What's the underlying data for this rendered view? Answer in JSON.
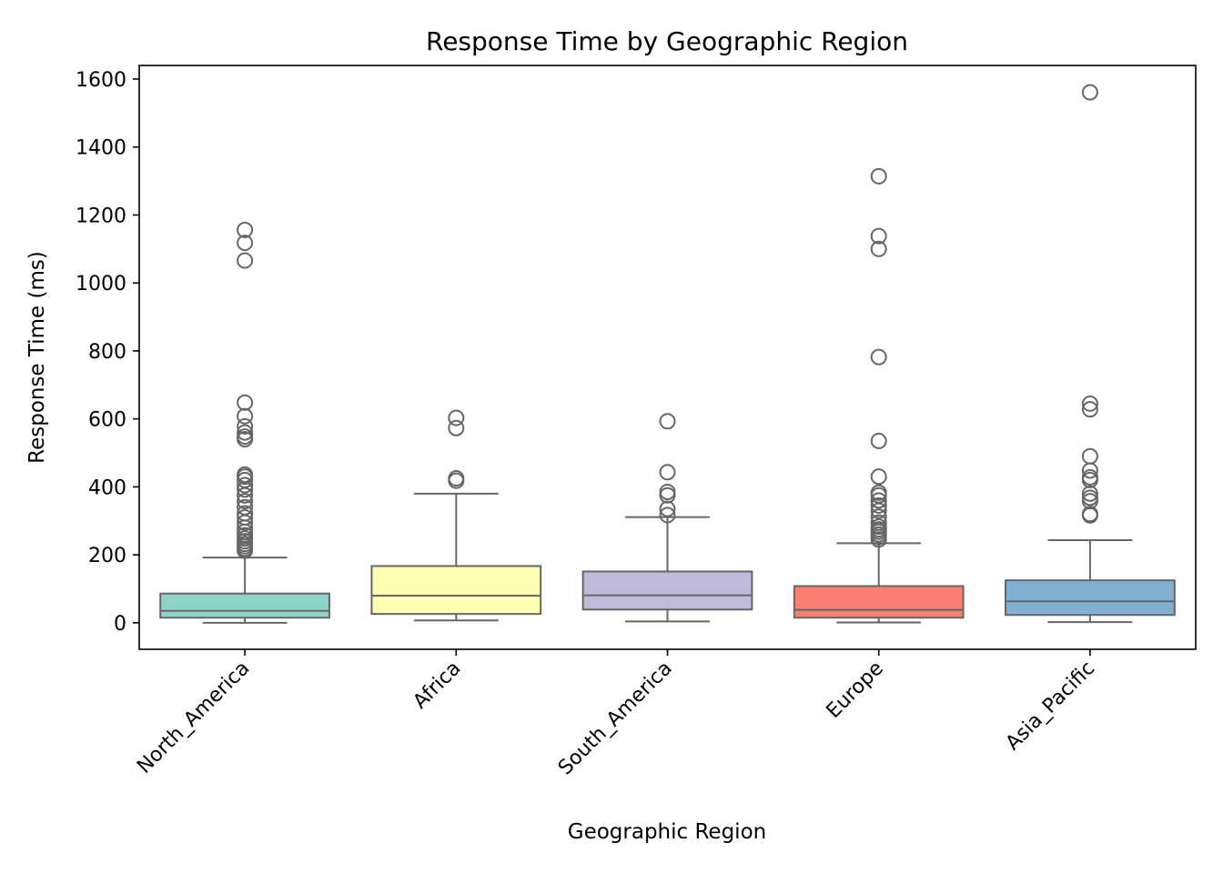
{
  "chart_data": {
    "type": "box",
    "title": "Response Time by Geographic Region",
    "xlabel": "Geographic Region",
    "ylabel": "Response Time (ms)",
    "ylim": [
      -78,
      1640
    ],
    "yticks": [
      0,
      200,
      400,
      600,
      800,
      1000,
      1200,
      1400,
      1600
    ],
    "grid": false,
    "categories": [
      "North_America",
      "Africa",
      "South_America",
      "Europe",
      "Asia_Pacific"
    ],
    "series": [
      {
        "category": "North_America",
        "color": "#8dd3c7",
        "whisker_low": 0,
        "q1": 15,
        "median": 35,
        "q3": 86,
        "whisker_high": 192,
        "outliers": [
          212,
          218,
          225,
          232,
          240,
          248,
          258,
          268,
          280,
          295,
          310,
          322,
          340,
          358,
          375,
          392,
          405,
          420,
          430,
          436,
          540,
          548,
          560,
          578,
          608,
          648,
          1066,
          1118,
          1156
        ]
      },
      {
        "category": "Africa",
        "color": "#ffffb3",
        "whisker_low": 7,
        "q1": 26,
        "median": 80,
        "q3": 167,
        "whisker_high": 380,
        "outliers": [
          418,
          425,
          573,
          603
        ]
      },
      {
        "category": "South_America",
        "color": "#bebada",
        "whisker_low": 4,
        "q1": 39,
        "median": 81,
        "q3": 151,
        "whisker_high": 311,
        "outliers": [
          317,
          335,
          375,
          385,
          443,
          593
        ]
      },
      {
        "category": "Europe",
        "color": "#fb8072",
        "whisker_low": 1,
        "q1": 15,
        "median": 38,
        "q3": 108,
        "whisker_high": 234,
        "outliers": [
          245,
          252,
          260,
          268,
          275,
          283,
          295,
          312,
          330,
          345,
          360,
          375,
          383,
          430,
          535,
          782,
          1100,
          1138,
          1314
        ]
      },
      {
        "category": "Asia_Pacific",
        "color": "#80b1d3",
        "whisker_low": 2,
        "q1": 23,
        "median": 63,
        "q3": 125,
        "whisker_high": 243,
        "outliers": [
          316,
          320,
          358,
          368,
          380,
          420,
          428,
          448,
          490,
          628,
          645,
          1561
        ]
      }
    ]
  }
}
